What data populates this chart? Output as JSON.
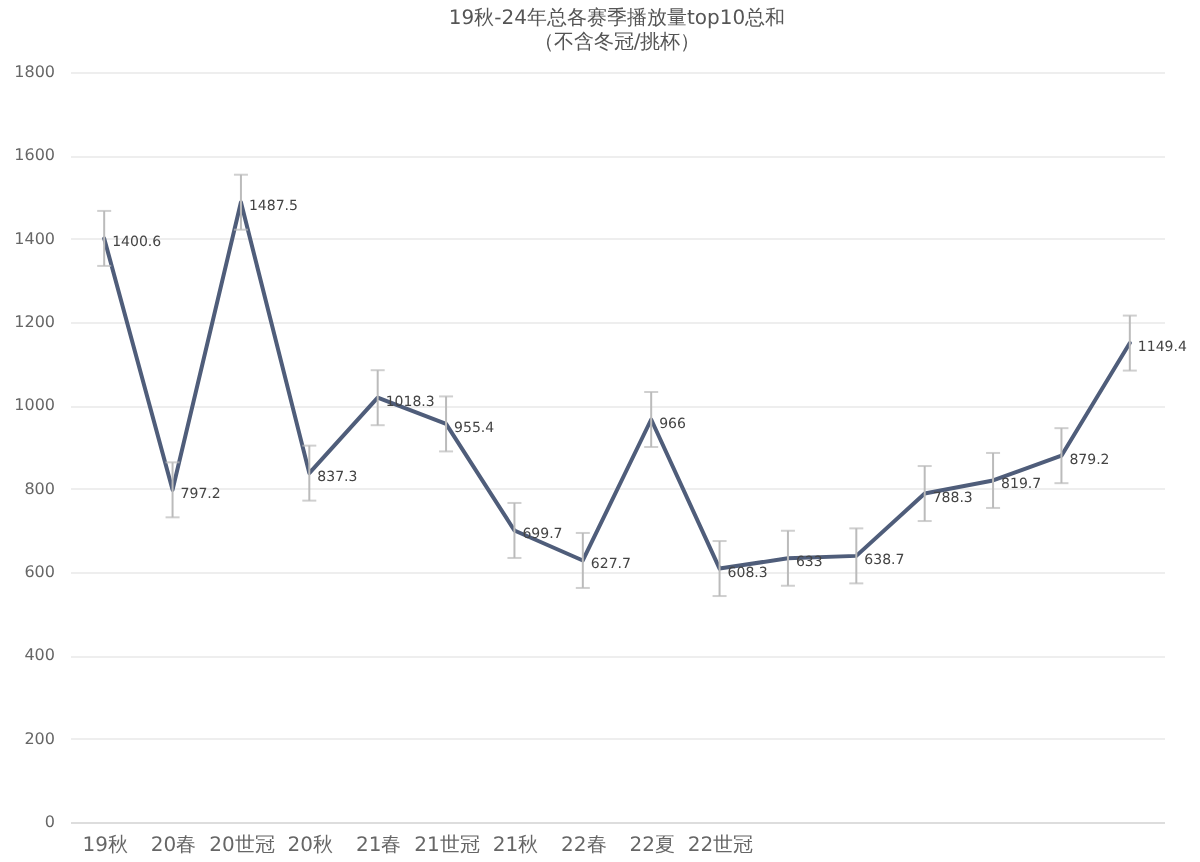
{
  "chart_data": {
    "type": "line",
    "title": "19秋-24年总各赛季播放量top10总和",
    "subtitle": "（不含冬冠/挑杯）",
    "categories": [
      "19秋",
      "20春",
      "20世冠",
      "20秋",
      "21春",
      "21世冠",
      "21秋",
      "22春",
      "22夏",
      "22世冠",
      null,
      null,
      null,
      null,
      null,
      null
    ],
    "values": [
      1400.6,
      797.2,
      1487.5,
      837.3,
      1018.3,
      955.4,
      699.7,
      627.7,
      966,
      608.3,
      633,
      638.7,
      788.3,
      819.7,
      879.2,
      1149.4
    ],
    "errors": [
      66,
      66,
      66,
      66,
      66,
      66,
      66,
      66,
      66,
      66,
      66,
      66,
      66,
      66,
      66,
      66
    ],
    "color": "#4f5d7a",
    "ylim": [
      0,
      1800
    ],
    "yticks": [
      0,
      200,
      400,
      600,
      800,
      1000,
      1200,
      1400,
      1600,
      1800
    ],
    "grid": "y",
    "data_labels": true
  }
}
